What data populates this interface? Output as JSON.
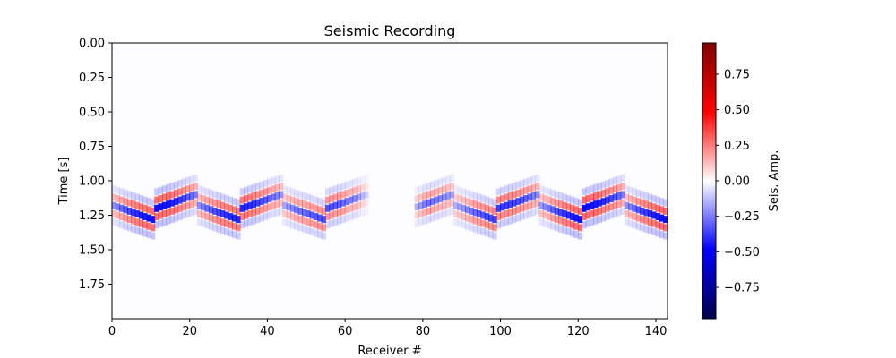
{
  "chart_data": {
    "type": "heatmap",
    "title": "Seismic Recording",
    "xlabel": "Receiver #",
    "ylabel": "Time [s]",
    "xlim": [
      0,
      143
    ],
    "ylim": [
      2.0,
      0.0
    ],
    "x_ticks": [
      0,
      20,
      40,
      60,
      80,
      100,
      120,
      140
    ],
    "x_tick_labels": [
      "0",
      "20",
      "40",
      "60",
      "80",
      "100",
      "120",
      "140"
    ],
    "y_ticks": [
      0.0,
      0.25,
      0.5,
      0.75,
      1.0,
      1.25,
      1.5,
      1.75
    ],
    "y_tick_labels": [
      "0.00",
      "0.25",
      "0.50",
      "0.75",
      "1.00",
      "1.25",
      "1.50",
      "1.75"
    ],
    "colormap": "seismic",
    "colorbar": {
      "label": "Seis. Amp.",
      "range": [
        -0.97,
        0.97
      ],
      "ticks": [
        0.75,
        0.5,
        0.25,
        0.0,
        -0.25,
        -0.5,
        -0.75
      ],
      "tick_labels": [
        "0.75",
        "0.50",
        "0.25",
        "0.00",
        "−0.25",
        "−0.50",
        "−0.75"
      ]
    },
    "event": {
      "arrival_time_s": 1.27,
      "gap_receivers": [
        66,
        77
      ],
      "peak_amplitude": 0.97
    },
    "grid": false
  },
  "colors": {
    "negative_max": "#00004c",
    "negative": "#0000ff",
    "zero": "#ffffff",
    "positive": "#ff0000",
    "positive_max": "#800000"
  }
}
